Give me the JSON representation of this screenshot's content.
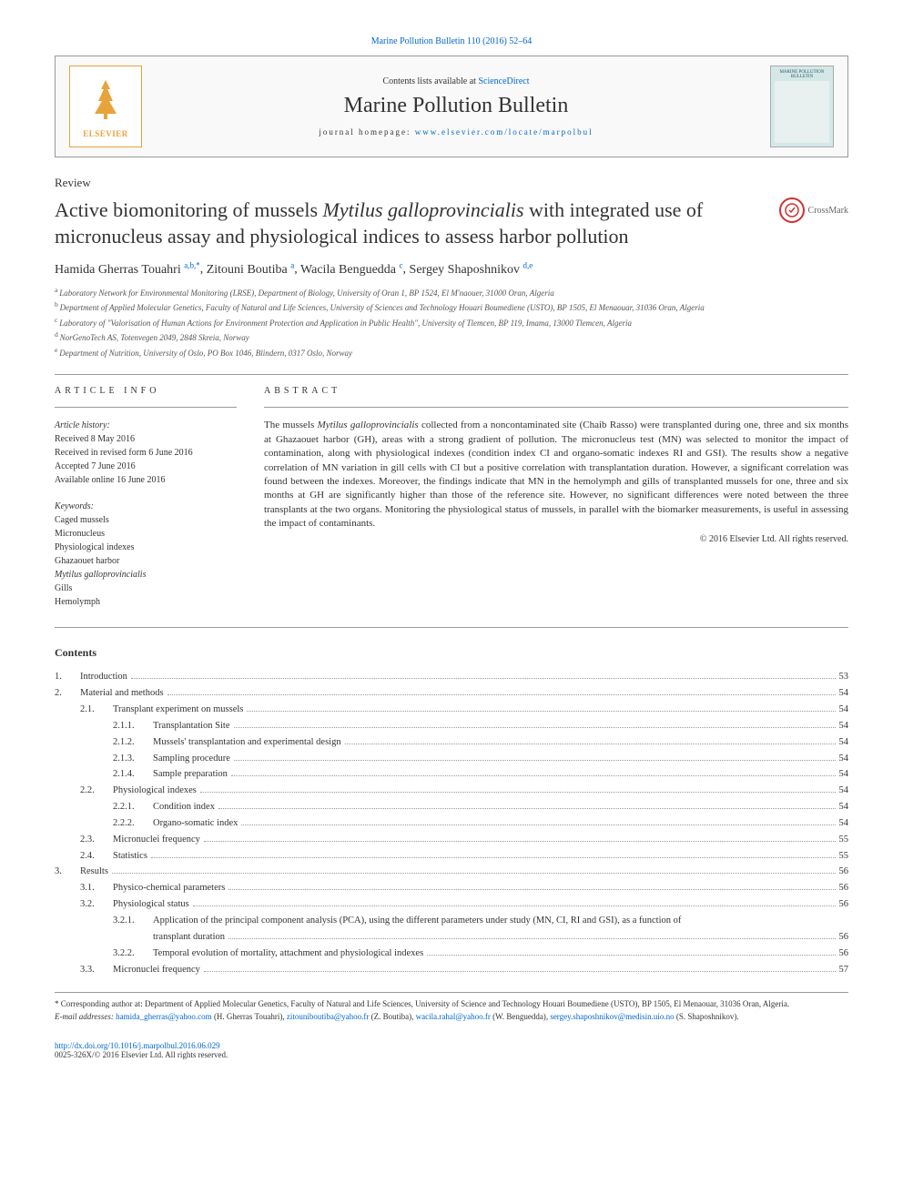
{
  "journalLink": {
    "text": "Marine Pollution Bulletin 110 (2016) 52–64"
  },
  "headerBox": {
    "elsevier": "ELSEVIER",
    "contentsLine": {
      "prefix": "Contents lists available at ",
      "link": "ScienceDirect"
    },
    "journalName": "Marine Pollution Bulletin",
    "homepage": {
      "prefix": "journal homepage: ",
      "link": "www.elsevier.com/locate/marpolbul"
    },
    "coverTitle": "MARINE POLLUTION BULLETIN"
  },
  "articleType": "Review",
  "title": {
    "pre": "Active biomonitoring of mussels ",
    "em": "Mytilus galloprovincialis",
    "post": " with integrated use of micronucleus assay and physiological indices to assess harbor pollution"
  },
  "crossmark": "CrossMark",
  "authors": [
    {
      "name": "Hamida Gherras Touahri",
      "sup": "a,b,",
      "star": true
    },
    {
      "name": "Zitouni Boutiba",
      "sup": "a"
    },
    {
      "name": "Wacila Benguedda",
      "sup": "c"
    },
    {
      "name": "Sergey Shaposhnikov",
      "sup": "d,e"
    }
  ],
  "affiliations": [
    {
      "sup": "a",
      "text": "Laboratory Network for Environmental Monitoring (LRSE), Department of Biology, University of Oran 1, BP 1524, El M'naouer, 31000 Oran, Algeria"
    },
    {
      "sup": "b",
      "text": "Department of Applied Molecular Genetics, Faculty of Natural and Life Sciences, University of Sciences and Technology Houari Boumediene (USTO), BP 1505, El Menaouar, 31036 Oran, Algeria"
    },
    {
      "sup": "c",
      "text": "Laboratory of \"Valorisation of Human Actions for Environment Protection and Application in Public Health\", University of Tlemcen, BP 119, Imama, 13000 Tlemcen, Algeria"
    },
    {
      "sup": "d",
      "text": "NorGenoTech AS, Totenvegen 2049, 2848 Skreia, Norway"
    },
    {
      "sup": "e",
      "text": "Department of Nutrition, University of Oslo, PO Box 1046, Blindern, 0317 Oslo, Norway"
    }
  ],
  "articleInfo": {
    "header": "article info",
    "historyLabel": "Article history:",
    "history": [
      "Received 8 May 2016",
      "Received in revised form 6 June 2016",
      "Accepted 7 June 2016",
      "Available online 16 June 2016"
    ],
    "keywordsLabel": "Keywords:",
    "keywords": [
      "Caged mussels",
      "Micronucleus",
      "Physiological indexes",
      "Ghazaouet harbor"
    ],
    "keywordsItalic": "Mytilus galloprovincialis",
    "keywordsAfter": [
      "Gills",
      "Hemolymph"
    ]
  },
  "abstract": {
    "header": "abstract",
    "text": "The mussels Mytilus galloprovincialis collected from a noncontaminated site (Chaib Rasso) were transplanted during one, three and six months at Ghazaouet harbor (GH), areas with a strong gradient of pollution. The micronucleus test (MN) was selected to monitor the impact of contamination, along with physiological indexes (condition index CI and organo-somatic indexes RI and GSI). The results show a negative correlation of MN variation in gill cells with CI but a positive correlation with transplantation duration. However, a significant correlation was found between the indexes. Moreover, the findings indicate that MN in the hemolymph and gills of transplanted mussels for one, three and six months at GH are significantly higher than those of the reference site. However, no significant differences were noted between the three transplants at the two organs. Monitoring the physiological status of mussels, in parallel with the biomarker measurements, is useful in assessing the impact of contaminants.",
    "copyright": "© 2016 Elsevier Ltd. All rights reserved."
  },
  "contentsHeading": "Contents",
  "toc": [
    {
      "level": 1,
      "num": "1.",
      "title": "Introduction",
      "page": "53"
    },
    {
      "level": 1,
      "num": "2.",
      "title": "Material and methods",
      "page": "54"
    },
    {
      "level": 2,
      "num": "2.1.",
      "title": "Transplant experiment on mussels",
      "page": "54"
    },
    {
      "level": 3,
      "num": "2.1.1.",
      "title": "Transplantation Site",
      "page": "54"
    },
    {
      "level": 3,
      "num": "2.1.2.",
      "title": "Mussels' transplantation and experimental design",
      "page": "54"
    },
    {
      "level": 3,
      "num": "2.1.3.",
      "title": "Sampling procedure",
      "page": "54"
    },
    {
      "level": 3,
      "num": "2.1.4.",
      "title": "Sample preparation",
      "page": "54"
    },
    {
      "level": 2,
      "num": "2.2.",
      "title": "Physiological indexes",
      "page": "54"
    },
    {
      "level": 3,
      "num": "2.2.1.",
      "title": "Condition index",
      "page": "54"
    },
    {
      "level": 3,
      "num": "2.2.2.",
      "title": "Organo-somatic index",
      "page": "54"
    },
    {
      "level": 2,
      "num": "2.3.",
      "title": "Micronuclei frequency",
      "page": "55"
    },
    {
      "level": 2,
      "num": "2.4.",
      "title": "Statistics",
      "page": "55"
    },
    {
      "level": 1,
      "num": "3.",
      "title": "Results",
      "page": "56"
    },
    {
      "level": 2,
      "num": "3.1.",
      "title": "Physico-chemical parameters",
      "page": "56"
    },
    {
      "level": 2,
      "num": "3.2.",
      "title": "Physiological status",
      "page": "56"
    },
    {
      "level": 3,
      "num": "3.2.1.",
      "title": "Application of the principal component analysis (PCA), using the different parameters under study (MN, CI, RI and GSI), as a function of",
      "cont": "transplant duration",
      "page": "56"
    },
    {
      "level": 3,
      "num": "3.2.2.",
      "title": "Temporal evolution of mortality, attachment and physiological indexes",
      "page": "56"
    },
    {
      "level": 2,
      "num": "3.3.",
      "title": "Micronuclei frequency",
      "page": "57"
    }
  ],
  "footnotes": {
    "corresponding": {
      "star": "*",
      "label": "Corresponding author at: ",
      "text": "Department of Applied Molecular Genetics, Faculty of Natural and Life Sciences, University of Science and Technology Houari Boumediene (USTO), BP 1505, El Menaouar, 31036 Oran, Algeria."
    },
    "emailLabel": "E-mail addresses:",
    "emails": [
      {
        "addr": "hamida_gherras@yahoo.com",
        "who": "(H. Gherras Touahri)"
      },
      {
        "addr": "zitouniboutiba@yahoo.fr",
        "who": "(Z. Boutiba)"
      },
      {
        "addr": "wacila.rahal@yahoo.fr",
        "who": "(W. Benguedda)"
      },
      {
        "addr": "sergey.shaposhnikov@medisin.uio.no",
        "who": "(S. Shaposhnikov)"
      }
    ]
  },
  "doiBlock": {
    "doi": "http://dx.doi.org/10.1016/j.marpolbul.2016.06.029",
    "issn": "0025-326X/© 2016 Elsevier Ltd. All rights reserved."
  }
}
